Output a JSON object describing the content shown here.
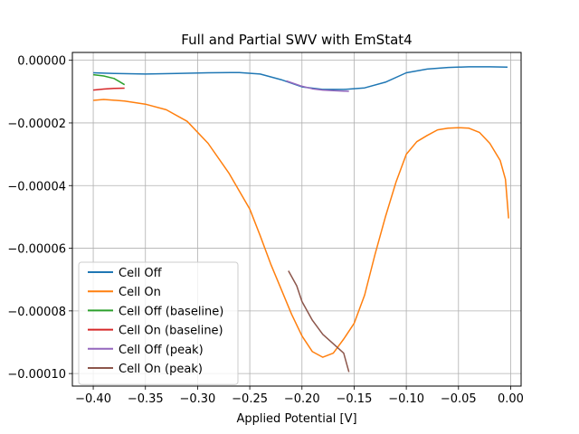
{
  "chart_data": {
    "type": "line",
    "title": "Full and Partial SWV with EmStat4",
    "xlabel": "Applied Potential [V]",
    "ylabel": "",
    "xlim": [
      -0.42,
      0.01
    ],
    "ylim": [
      -0.000104,
      2.5e-06
    ],
    "grid": true,
    "legend_position": "lower-left",
    "x_ticks": [
      -0.4,
      -0.35,
      -0.3,
      -0.25,
      -0.2,
      -0.15,
      -0.1,
      -0.05,
      0.0
    ],
    "x_tick_labels": [
      "−0.40",
      "−0.35",
      "−0.30",
      "−0.25",
      "−0.20",
      "−0.15",
      "−0.10",
      "−0.05",
      "0.00"
    ],
    "y_ticks": [
      0,
      -2e-05,
      -4e-05,
      -6e-05,
      -8e-05,
      -0.0001
    ],
    "y_tick_labels": [
      "0.00000",
      "−0.00002",
      "−0.00004",
      "−0.00006",
      "−0.00008",
      "−0.00010"
    ],
    "series": [
      {
        "name": "Cell Off",
        "color": "#1f77b4",
        "points": [
          [
            -0.4,
            -4e-06
          ],
          [
            -0.38,
            -4.2e-06
          ],
          [
            -0.35,
            -4.4e-06
          ],
          [
            -0.32,
            -4.2e-06
          ],
          [
            -0.29,
            -4e-06
          ],
          [
            -0.26,
            -3.9e-06
          ],
          [
            -0.24,
            -4.4e-06
          ],
          [
            -0.22,
            -6.2e-06
          ],
          [
            -0.2,
            -8.5e-06
          ],
          [
            -0.18,
            -9.3e-06
          ],
          [
            -0.16,
            -9.3e-06
          ],
          [
            -0.14,
            -8.8e-06
          ],
          [
            -0.12,
            -7e-06
          ],
          [
            -0.1,
            -4e-06
          ],
          [
            -0.08,
            -2.8e-06
          ],
          [
            -0.06,
            -2.3e-06
          ],
          [
            -0.04,
            -2.1e-06
          ],
          [
            -0.02,
            -2.1e-06
          ],
          [
            -0.003,
            -2.2e-06
          ]
        ]
      },
      {
        "name": "Cell On",
        "color": "#ff7f0e",
        "points": [
          [
            -0.4,
            -1.28e-05
          ],
          [
            -0.39,
            -1.25e-05
          ],
          [
            -0.37,
            -1.3e-05
          ],
          [
            -0.35,
            -1.4e-05
          ],
          [
            -0.33,
            -1.58e-05
          ],
          [
            -0.31,
            -1.95e-05
          ],
          [
            -0.29,
            -2.65e-05
          ],
          [
            -0.27,
            -3.6e-05
          ],
          [
            -0.25,
            -4.75e-05
          ],
          [
            -0.24,
            -5.6e-05
          ],
          [
            -0.23,
            -6.5e-05
          ],
          [
            -0.22,
            -7.3e-05
          ],
          [
            -0.21,
            -8.1e-05
          ],
          [
            -0.2,
            -8.8e-05
          ],
          [
            -0.19,
            -9.3e-05
          ],
          [
            -0.18,
            -9.48e-05
          ],
          [
            -0.17,
            -9.35e-05
          ],
          [
            -0.16,
            -8.9e-05
          ],
          [
            -0.15,
            -8.4e-05
          ],
          [
            -0.14,
            -7.5e-05
          ],
          [
            -0.13,
            -6.2e-05
          ],
          [
            -0.12,
            -5e-05
          ],
          [
            -0.11,
            -3.9e-05
          ],
          [
            -0.1,
            -3e-05
          ],
          [
            -0.09,
            -2.6e-05
          ],
          [
            -0.08,
            -2.4e-05
          ],
          [
            -0.07,
            -2.22e-05
          ],
          [
            -0.06,
            -2.17e-05
          ],
          [
            -0.05,
            -2.15e-05
          ],
          [
            -0.04,
            -2.17e-05
          ],
          [
            -0.03,
            -2.3e-05
          ],
          [
            -0.02,
            -2.65e-05
          ],
          [
            -0.01,
            -3.2e-05
          ],
          [
            -0.005,
            -3.8e-05
          ],
          [
            -0.002,
            -5.05e-05
          ]
        ]
      },
      {
        "name": "Cell Off (baseline)",
        "color": "#2ca02c",
        "points": [
          [
            -0.4,
            -4.6e-06
          ],
          [
            -0.39,
            -5e-06
          ],
          [
            -0.38,
            -5.8e-06
          ],
          [
            -0.375,
            -6.8e-06
          ],
          [
            -0.37,
            -7.8e-06
          ]
        ]
      },
      {
        "name": "Cell On (baseline)",
        "color": "#d62728",
        "points": [
          [
            -0.4,
            -9.5e-06
          ],
          [
            -0.39,
            -9.2e-06
          ],
          [
            -0.38,
            -9e-06
          ],
          [
            -0.37,
            -8.9e-06
          ]
        ]
      },
      {
        "name": "Cell Off (peak)",
        "color": "#9467bd",
        "points": [
          [
            -0.215,
            -6.6e-06
          ],
          [
            -0.2,
            -8.3e-06
          ],
          [
            -0.19,
            -9.1e-06
          ],
          [
            -0.18,
            -9.5e-06
          ],
          [
            -0.17,
            -9.7e-06
          ],
          [
            -0.155,
            -9.9e-06
          ]
        ]
      },
      {
        "name": "Cell On (peak)",
        "color": "#8c564b",
        "points": [
          [
            -0.213,
            -6.72e-05
          ],
          [
            -0.205,
            -7.2e-05
          ],
          [
            -0.2,
            -7.7e-05
          ],
          [
            -0.19,
            -8.3e-05
          ],
          [
            -0.18,
            -8.75e-05
          ],
          [
            -0.17,
            -9.05e-05
          ],
          [
            -0.16,
            -9.35e-05
          ],
          [
            -0.155,
            -9.95e-05
          ]
        ]
      }
    ]
  }
}
